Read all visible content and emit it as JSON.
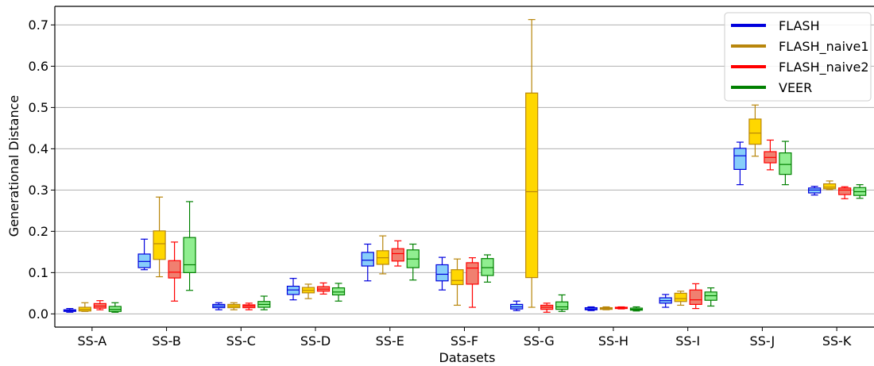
{
  "chart_data": {
    "type": "box",
    "xlabel": "Datasets",
    "ylabel": "Generational Distance",
    "ylim": [
      -0.032,
      0.745
    ],
    "yticks": [
      "0.0",
      "0.1",
      "0.2",
      "0.3",
      "0.4",
      "0.5",
      "0.6",
      "0.7"
    ],
    "grid": "horizontal",
    "legend_position": "top-right",
    "categories": [
      "SS-A",
      "SS-B",
      "SS-C",
      "SS-D",
      "SS-E",
      "SS-F",
      "SS-G",
      "SS-H",
      "SS-I",
      "SS-J",
      "SS-K"
    ],
    "series": [
      {
        "name": "FLASH",
        "line_color": "#0000dd",
        "fill_color": "#87cefa",
        "boxes": [
          {
            "min": 0.004,
            "q1": 0.006,
            "median": 0.008,
            "q3": 0.01,
            "max": 0.013
          },
          {
            "min": 0.107,
            "q1": 0.112,
            "median": 0.127,
            "q3": 0.145,
            "max": 0.181
          },
          {
            "min": 0.01,
            "q1": 0.015,
            "median": 0.019,
            "q3": 0.023,
            "max": 0.027
          },
          {
            "min": 0.034,
            "q1": 0.047,
            "median": 0.058,
            "q3": 0.067,
            "max": 0.086
          },
          {
            "min": 0.08,
            "q1": 0.116,
            "median": 0.13,
            "q3": 0.149,
            "max": 0.169
          },
          {
            "min": 0.058,
            "q1": 0.08,
            "median": 0.096,
            "q3": 0.119,
            "max": 0.137
          },
          {
            "min": 0.008,
            "q1": 0.012,
            "median": 0.017,
            "q3": 0.023,
            "max": 0.031
          },
          {
            "min": 0.008,
            "q1": 0.01,
            "median": 0.012,
            "q3": 0.015,
            "max": 0.017
          },
          {
            "min": 0.016,
            "q1": 0.026,
            "median": 0.032,
            "q3": 0.039,
            "max": 0.047
          },
          {
            "min": 0.313,
            "q1": 0.35,
            "median": 0.383,
            "q3": 0.401,
            "max": 0.416
          },
          {
            "min": 0.288,
            "q1": 0.293,
            "median": 0.3,
            "q3": 0.305,
            "max": 0.309
          }
        ]
      },
      {
        "name": "FLASH_naive1",
        "line_color": "#b8860b",
        "fill_color": "#ffd700",
        "boxes": [
          {
            "min": 0.006,
            "q1": 0.007,
            "median": 0.011,
            "q3": 0.016,
            "max": 0.027
          },
          {
            "min": 0.09,
            "q1": 0.132,
            "median": 0.17,
            "q3": 0.201,
            "max": 0.283
          },
          {
            "min": 0.01,
            "q1": 0.015,
            "median": 0.019,
            "q3": 0.023,
            "max": 0.027
          },
          {
            "min": 0.037,
            "q1": 0.051,
            "median": 0.057,
            "q3": 0.064,
            "max": 0.072
          },
          {
            "min": 0.097,
            "q1": 0.12,
            "median": 0.136,
            "q3": 0.153,
            "max": 0.189
          },
          {
            "min": 0.021,
            "q1": 0.071,
            "median": 0.081,
            "q3": 0.107,
            "max": 0.133
          },
          {
            "min": 0.016,
            "q1": 0.088,
            "median": 0.296,
            "q3": 0.535,
            "max": 0.713
          },
          {
            "min": 0.01,
            "q1": 0.011,
            "median": 0.013,
            "q3": 0.015,
            "max": 0.017
          },
          {
            "min": 0.021,
            "q1": 0.03,
            "median": 0.037,
            "q3": 0.05,
            "max": 0.055
          },
          {
            "min": 0.382,
            "q1": 0.411,
            "median": 0.438,
            "q3": 0.472,
            "max": 0.506
          },
          {
            "min": 0.301,
            "q1": 0.303,
            "median": 0.307,
            "q3": 0.315,
            "max": 0.322
          }
        ]
      },
      {
        "name": "FLASH_naive2",
        "line_color": "#ff0000",
        "fill_color": "#f08070",
        "boxes": [
          {
            "min": 0.01,
            "q1": 0.014,
            "median": 0.019,
            "q3": 0.025,
            "max": 0.032
          },
          {
            "min": 0.031,
            "q1": 0.087,
            "median": 0.101,
            "q3": 0.129,
            "max": 0.174
          },
          {
            "min": 0.01,
            "q1": 0.015,
            "median": 0.019,
            "q3": 0.022,
            "max": 0.026
          },
          {
            "min": 0.048,
            "q1": 0.055,
            "median": 0.06,
            "q3": 0.066,
            "max": 0.075
          },
          {
            "min": 0.116,
            "q1": 0.128,
            "median": 0.146,
            "q3": 0.158,
            "max": 0.177
          },
          {
            "min": 0.016,
            "q1": 0.072,
            "median": 0.111,
            "q3": 0.124,
            "max": 0.136
          },
          {
            "min": 0.004,
            "q1": 0.011,
            "median": 0.016,
            "q3": 0.021,
            "max": 0.026
          },
          {
            "min": 0.012,
            "q1": 0.013,
            "median": 0.015,
            "q3": 0.016,
            "max": 0.017
          },
          {
            "min": 0.013,
            "q1": 0.023,
            "median": 0.034,
            "q3": 0.058,
            "max": 0.073
          },
          {
            "min": 0.349,
            "q1": 0.366,
            "median": 0.379,
            "q3": 0.393,
            "max": 0.421
          },
          {
            "min": 0.279,
            "q1": 0.289,
            "median": 0.3,
            "q3": 0.305,
            "max": 0.308
          }
        ]
      },
      {
        "name": "VEER",
        "line_color": "#008000",
        "fill_color": "#90ee90",
        "boxes": [
          {
            "min": 0.004,
            "q1": 0.006,
            "median": 0.011,
            "q3": 0.018,
            "max": 0.027
          },
          {
            "min": 0.057,
            "q1": 0.1,
            "median": 0.119,
            "q3": 0.185,
            "max": 0.272
          },
          {
            "min": 0.01,
            "q1": 0.016,
            "median": 0.023,
            "q3": 0.03,
            "max": 0.043
          },
          {
            "min": 0.031,
            "q1": 0.046,
            "median": 0.053,
            "q3": 0.063,
            "max": 0.074
          },
          {
            "min": 0.082,
            "q1": 0.112,
            "median": 0.133,
            "q3": 0.155,
            "max": 0.169
          },
          {
            "min": 0.077,
            "q1": 0.093,
            "median": 0.112,
            "q3": 0.134,
            "max": 0.143
          },
          {
            "min": 0.006,
            "q1": 0.011,
            "median": 0.017,
            "q3": 0.029,
            "max": 0.046
          },
          {
            "min": 0.007,
            "q1": 0.009,
            "median": 0.011,
            "q3": 0.014,
            "max": 0.017
          },
          {
            "min": 0.019,
            "q1": 0.033,
            "median": 0.044,
            "q3": 0.053,
            "max": 0.063
          },
          {
            "min": 0.313,
            "q1": 0.338,
            "median": 0.362,
            "q3": 0.39,
            "max": 0.418
          },
          {
            "min": 0.28,
            "q1": 0.287,
            "median": 0.296,
            "q3": 0.306,
            "max": 0.313
          }
        ]
      }
    ]
  }
}
